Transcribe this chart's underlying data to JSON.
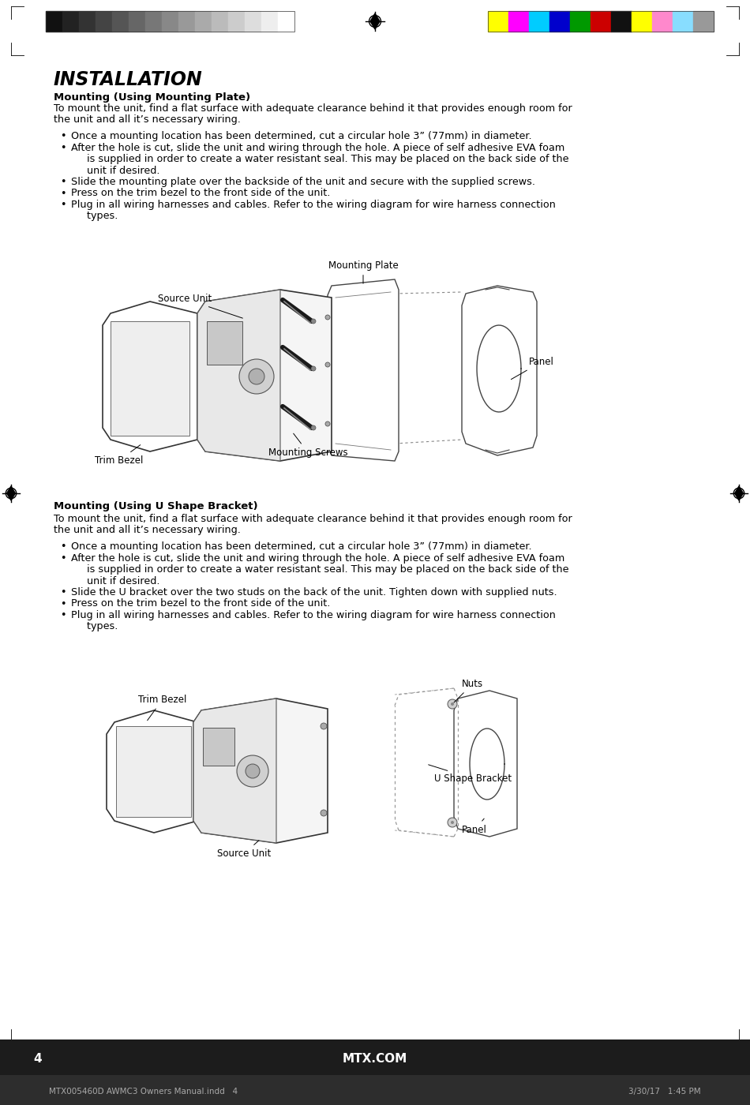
{
  "bg_color": "#ffffff",
  "grayscale_colors": [
    "#111111",
    "#222222",
    "#333333",
    "#444444",
    "#555555",
    "#666666",
    "#777777",
    "#888888",
    "#999999",
    "#aaaaaa",
    "#bbbbbb",
    "#cccccc",
    "#dddddd",
    "#eeeeee",
    "#ffffff"
  ],
  "color_bars": [
    "#ffff00",
    "#ff00ff",
    "#00ccff",
    "#0000cc",
    "#009900",
    "#cc0000",
    "#111111",
    "#ffff00",
    "#ff88cc",
    "#88ddff",
    "#999999"
  ],
  "title": "INSTALLATION",
  "s1_heading": "Mounting (Using Mounting Plate)",
  "s1_body_line1": "To mount the unit, find a flat surface with adequate clearance behind it that provides enough room for",
  "s1_body_line2": "the unit and all it’s necessary wiring.",
  "s1_bullets": [
    "Once a mounting location has been determined, cut a circular hole 3” (77mm) in diameter.",
    "After the hole is cut, slide the unit and wiring through the hole. A piece of self adhesive EVA foam",
    "     is supplied in order to create a water resistant seal. This may be placed on the back side of the",
    "     unit if desired.",
    "Slide the mounting plate over the backside of the unit and secure with the supplied screws.",
    "Press on the trim bezel to the front side of the unit.",
    "Plug in all wiring harnesses and cables. Refer to the wiring diagram for wire harness connection",
    "     types."
  ],
  "s1_bullet_flags": [
    true,
    true,
    false,
    false,
    true,
    true,
    true,
    false
  ],
  "s2_heading": "Mounting (Using U Shape Bracket)",
  "s2_body_line1": "To mount the unit, find a flat surface with adequate clearance behind it that provides enough room for",
  "s2_body_line2": "the unit and all it’s necessary wiring.",
  "s2_bullets": [
    "Once a mounting location has been determined, cut a circular hole 3” (77mm) in diameter.",
    "After the hole is cut, slide the unit and wiring through the hole. A piece of self adhesive EVA foam",
    "     is supplied in order to create a water resistant seal. This may be placed on the back side of the",
    "     unit if desired.",
    "Slide the U bracket over the two studs on the back of the unit. Tighten down with supplied nuts.",
    "Press on the trim bezel to the front side of the unit.",
    "Plug in all wiring harnesses and cables. Refer to the wiring diagram for wire harness connection",
    "     types."
  ],
  "s2_bullet_flags": [
    true,
    true,
    false,
    false,
    true,
    true,
    true,
    false
  ],
  "footer_num": "4",
  "footer_center": "MTX.COM",
  "footer_bar_left": "MTX005460D AWMC3 Owners Manual.indd   4",
  "footer_bar_right": "3/30/17   1:45 PM",
  "footer_bg": "#1c1c1c",
  "footer_bar_bg": "#2d2d2d"
}
